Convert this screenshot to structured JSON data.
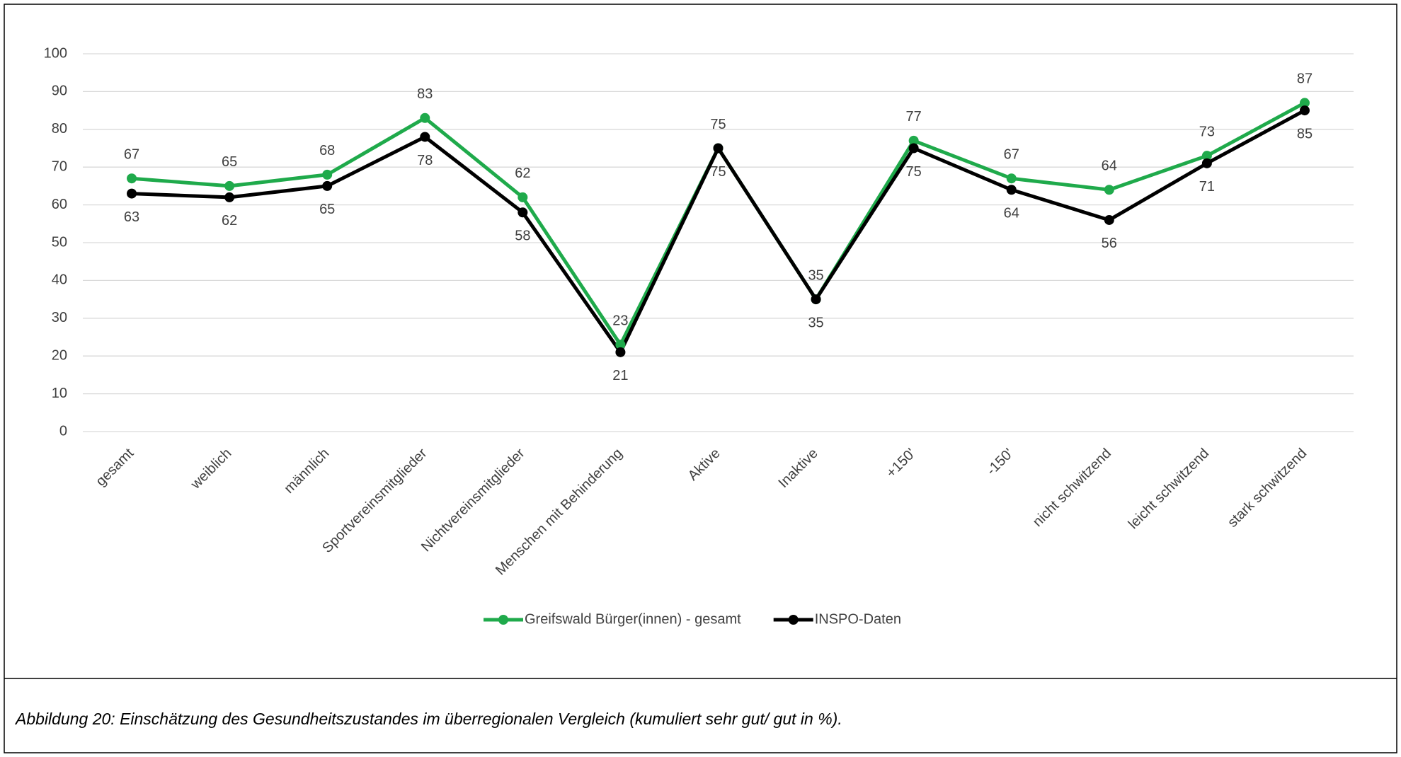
{
  "chart_data": {
    "type": "line",
    "categories": [
      "gesamt",
      "weiblich",
      "männlich",
      "Sportvereinsmitglieder",
      "Nichtvereinsmitglieder",
      "Menschen mit Behinderung",
      "Aktive",
      "Inaktive",
      "+150'",
      "-150'",
      "nicht schwitzend",
      "leicht schwitzend",
      "stark schwitzend"
    ],
    "series": [
      {
        "name": "Greifswald Bürger(innen) - gesamt",
        "color": "#1faa4b",
        "values": [
          67,
          65,
          68,
          83,
          62,
          23,
          75,
          35,
          77,
          67,
          64,
          73,
          87
        ]
      },
      {
        "name": "INSPO-Daten",
        "color": "#000000",
        "values": [
          63,
          62,
          65,
          78,
          58,
          21,
          75,
          35,
          75,
          64,
          56,
          71,
          85
        ]
      }
    ],
    "ylim": [
      0,
      100
    ],
    "yticks": [
      0,
      10,
      20,
      30,
      40,
      50,
      60,
      70,
      80,
      90,
      100
    ],
    "grid": true,
    "legend": "bottom",
    "caption": "Abbildung 20: Einschätzung des Gesundheitszustandes im überregionalen Vergleich (kumuliert sehr gut/ gut in %)."
  }
}
